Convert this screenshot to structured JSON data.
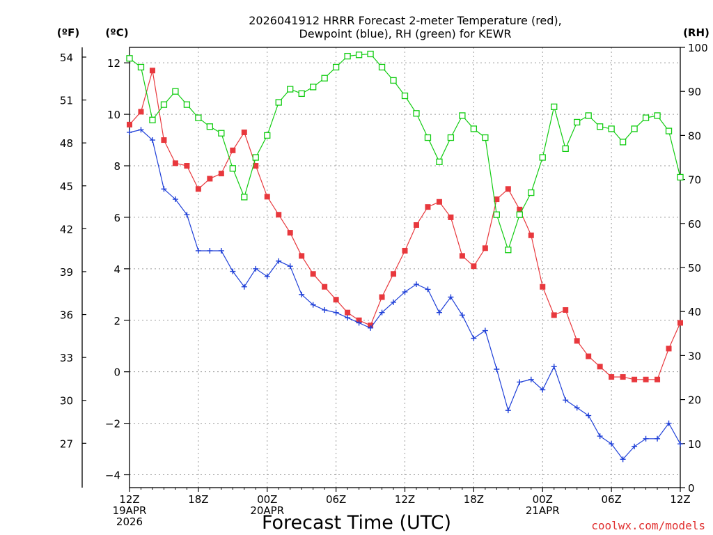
{
  "chart_data": {
    "type": "line",
    "title_line1": "2026041912 HRRR Forecast 2-meter Temperature (red),",
    "title_line2": "Dewpoint (blue), RH (green) for KEWR",
    "xlabel": "Forecast Time (UTC)",
    "credit": "coolwx.com/models",
    "units": {
      "fahrenheit": "(ºF)",
      "celsius": "(ºC)",
      "rh": "(RH)"
    },
    "x_range": [
      0,
      48
    ],
    "celsius_range": [
      -4.5,
      12.6
    ],
    "rh_range": [
      0,
      100
    ],
    "x_ticks": [
      {
        "hour": 0,
        "lines": [
          "12Z",
          "19APR",
          "2026"
        ]
      },
      {
        "hour": 6,
        "lines": [
          "18Z"
        ]
      },
      {
        "hour": 12,
        "lines": [
          "00Z",
          "20APR"
        ]
      },
      {
        "hour": 18,
        "lines": [
          "06Z"
        ]
      },
      {
        "hour": 24,
        "lines": [
          "12Z"
        ]
      },
      {
        "hour": 30,
        "lines": [
          "18Z"
        ]
      },
      {
        "hour": 36,
        "lines": [
          "00Z",
          "21APR"
        ]
      },
      {
        "hour": 42,
        "lines": [
          "06Z"
        ]
      },
      {
        "hour": 48,
        "lines": [
          "12Z"
        ]
      }
    ],
    "celsius_ticks": [
      "12",
      "10",
      "8",
      "6",
      "4",
      "2",
      "0",
      "−2",
      "−4"
    ],
    "celsius_tick_values": [
      12,
      10,
      8,
      6,
      4,
      2,
      0,
      -2,
      -4
    ],
    "fahrenheit_ticks": [
      "54",
      "51",
      "48",
      "45",
      "42",
      "39",
      "36",
      "33",
      "30",
      "27"
    ],
    "fahrenheit_tick_values": [
      54,
      51,
      48,
      45,
      42,
      39,
      36,
      33,
      30,
      27
    ],
    "rh_ticks": [
      "100",
      "90",
      "80",
      "70",
      "60",
      "50",
      "40",
      "30",
      "20",
      "10",
      "0"
    ],
    "rh_tick_values": [
      100,
      90,
      80,
      70,
      60,
      50,
      40,
      30,
      20,
      10,
      0
    ],
    "series": [
      {
        "name": "Temperature",
        "axis": "celsius",
        "color": "#e8383d",
        "marker": "filled-square",
        "values": [
          9.6,
          10.1,
          11.7,
          9.0,
          8.1,
          8.0,
          7.1,
          7.5,
          7.7,
          8.6,
          9.3,
          8.0,
          6.8,
          6.1,
          5.4,
          4.5,
          3.8,
          3.3,
          2.8,
          2.3,
          2.0,
          1.8,
          2.9,
          3.8,
          4.7,
          5.7,
          6.4,
          6.6,
          6.0,
          4.5,
          4.1,
          4.8,
          6.7,
          7.1,
          6.3,
          5.3,
          3.3,
          2.2,
          2.4,
          1.2,
          0.6,
          0.2,
          -0.2,
          -0.2,
          -0.3,
          -0.3,
          -0.3,
          0.9,
          1.9
        ]
      },
      {
        "name": "Dewpoint",
        "axis": "celsius",
        "color": "#1e3fd8",
        "marker": "plus",
        "values": [
          9.3,
          9.4,
          9.0,
          7.1,
          6.7,
          6.1,
          4.7,
          4.7,
          4.7,
          3.9,
          3.3,
          4.0,
          3.7,
          4.3,
          4.1,
          3.0,
          2.6,
          2.4,
          2.3,
          2.1,
          1.9,
          1.7,
          2.3,
          2.7,
          3.1,
          3.4,
          3.2,
          2.3,
          2.9,
          2.2,
          1.3,
          1.6,
          0.1,
          -1.5,
          -0.4,
          -0.3,
          -0.7,
          0.2,
          -1.1,
          -1.4,
          -1.7,
          -2.5,
          -2.8,
          -3.4,
          -2.9,
          -2.6,
          -2.6,
          -2.0,
          -2.8
        ]
      },
      {
        "name": "RH",
        "axis": "rh",
        "color": "#11cc11",
        "marker": "open-square",
        "values": [
          97.5,
          95.5,
          83.5,
          87.0,
          90.0,
          87.0,
          84.0,
          82.0,
          80.5,
          72.5,
          66.0,
          75.0,
          80.0,
          87.5,
          90.5,
          89.5,
          91.0,
          93.0,
          95.5,
          98.0,
          98.3,
          98.5,
          95.5,
          92.5,
          89.0,
          85.0,
          79.5,
          74.0,
          79.5,
          84.5,
          81.5,
          79.5,
          62.0,
          54.0,
          62.0,
          67.0,
          75.0,
          86.5,
          77.0,
          83.0,
          84.5,
          82.0,
          81.5,
          78.5,
          81.5,
          84.0,
          84.5,
          81.0,
          70.5
        ]
      }
    ]
  }
}
